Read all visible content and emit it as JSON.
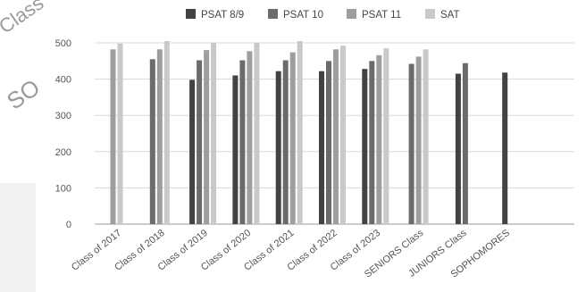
{
  "ghost_text": [
    "Class",
    "SO"
  ],
  "chart_data": {
    "type": "bar",
    "categories": [
      "Class of 2017",
      "Class of 2018",
      "Class of 2019",
      "Class of 2020",
      "Class of 2021",
      "Class of 2022",
      "Class of 2023",
      "SENIORS Class",
      "JUNIORS Class",
      "SOPHOMORES"
    ],
    "series": [
      {
        "name": "PSAT 8/9",
        "color": "#424242",
        "values": [
          null,
          null,
          398,
          410,
          422,
          422,
          428,
          null,
          415,
          418
        ]
      },
      {
        "name": "PSAT 10",
        "color": "#6b6b6b",
        "values": [
          null,
          455,
          452,
          452,
          452,
          450,
          450,
          442,
          444,
          null
        ]
      },
      {
        "name": "PSAT 11",
        "color": "#9e9e9e",
        "values": [
          482,
          482,
          480,
          477,
          474,
          482,
          466,
          462,
          null,
          null
        ]
      },
      {
        "name": "SAT",
        "color": "#c9c9c9",
        "values": [
          498,
          505,
          500,
          500,
          505,
          492,
          485,
          482,
          null,
          null
        ]
      }
    ],
    "yticks": [
      0,
      100,
      200,
      300,
      400,
      500
    ],
    "ylim": [
      0,
      520
    ],
    "legend_position": "top",
    "grid": true
  }
}
